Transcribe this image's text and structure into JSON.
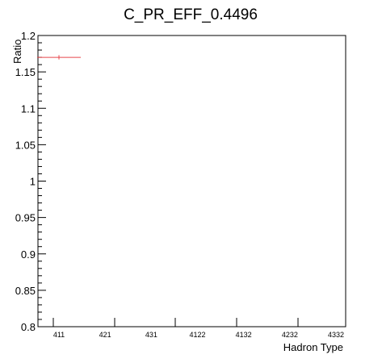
{
  "chart_data": {
    "type": "scatter",
    "title": "C_PR_EFF_0.4496",
    "xlabel": "Hadron Type",
    "ylabel": "Ratio",
    "categories": [
      "411",
      "421",
      "431",
      "4122",
      "4132",
      "4232",
      "4332"
    ],
    "ylim": [
      0.8,
      1.2
    ],
    "yticks": [
      "0.8",
      "0.85",
      "0.9",
      "0.95",
      "1",
      "1.05",
      "1.1",
      "1.15",
      "1.2"
    ],
    "grid": false,
    "series": [
      {
        "color": "#e8474c",
        "points": [
          {
            "category": "411",
            "y": 1.17,
            "xerr": 0.5,
            "yerr": 0.003
          }
        ]
      }
    ]
  }
}
